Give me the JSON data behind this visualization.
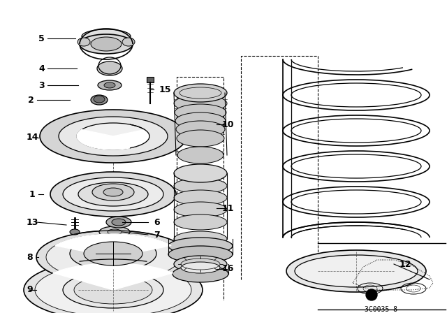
{
  "bg_color": "#ffffff",
  "watermark": "3C0035 8",
  "fig_width": 6.4,
  "fig_height": 4.48,
  "dpi": 100,
  "black": "#000000",
  "gray_light": "#e8e8e8",
  "gray_mid": "#cccccc",
  "gray_dark": "#aaaaaa"
}
